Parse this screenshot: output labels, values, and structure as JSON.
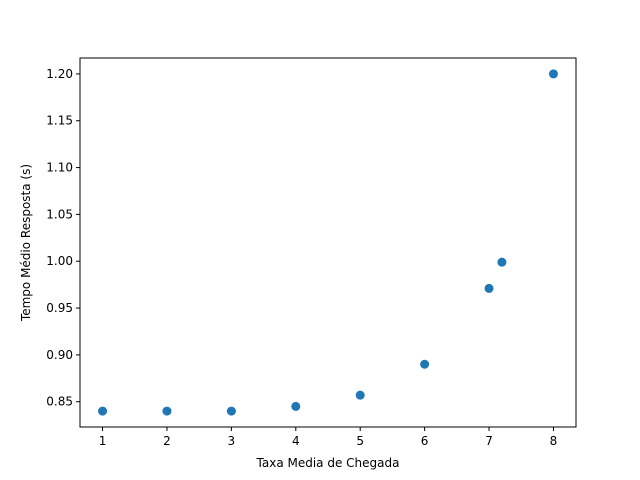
{
  "chart_data": {
    "type": "scatter",
    "title": "",
    "xlabel": "Taxa Media de Chegada",
    "ylabel": "Tempo Médio Resposta (s)",
    "xlim": [
      0.65,
      8.35
    ],
    "ylim": [
      0.823,
      1.217
    ],
    "xticks": [
      1,
      2,
      3,
      4,
      5,
      6,
      7,
      8
    ],
    "xtick_labels": [
      "1",
      "2",
      "3",
      "4",
      "5",
      "6",
      "7",
      "8"
    ],
    "yticks": [
      0.85,
      0.9,
      0.95,
      1.0,
      1.05,
      1.1,
      1.15,
      1.2
    ],
    "ytick_labels": [
      "0.85",
      "0.90",
      "0.95",
      "1.00",
      "1.05",
      "1.10",
      "1.15",
      "1.20"
    ],
    "grid": false,
    "legend": "none",
    "color": "#1f77b4",
    "points": [
      {
        "x": 1,
        "y": 0.84
      },
      {
        "x": 2,
        "y": 0.84
      },
      {
        "x": 3,
        "y": 0.84
      },
      {
        "x": 4,
        "y": 0.845
      },
      {
        "x": 5,
        "y": 0.857
      },
      {
        "x": 6,
        "y": 0.89
      },
      {
        "x": 7,
        "y": 0.971
      },
      {
        "x": 7.2,
        "y": 0.999
      },
      {
        "x": 8,
        "y": 1.2
      }
    ]
  }
}
